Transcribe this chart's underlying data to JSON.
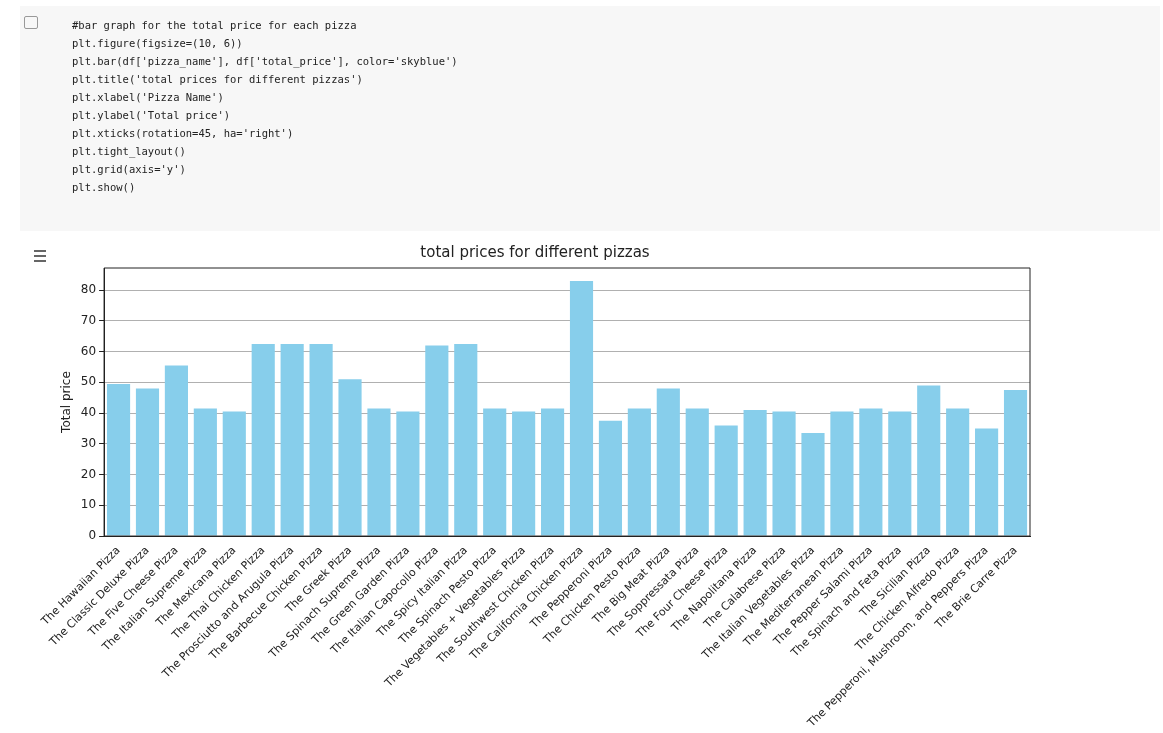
{
  "chart_data": {
    "type": "bar",
    "title": "total prices for different pizzas",
    "ylabel": "Total price",
    "annotations": [
      "#bar graph for the total price for each pizza",
      "plt.figure(figsize=(10, 6))",
      "plt.bar(df['pizza_name'], df['total_price'], color='skyblue')",
      "plt.title('total prices for different pizzas')",
      "plt.xlabel('Pizza Name')",
      "plt.ylabel('Total price')",
      "plt.xticks(rotation=45, ha='right')",
      "plt.tight_layout()",
      "plt.grid(axis='y')",
      "plt.show()"
    ],
    "categories": [
      "The Hawaiian Pizza",
      "The Classic Deluxe Pizza",
      "The Five Cheese Pizza",
      "The Italian Supreme Pizza",
      "The Mexicana Pizza",
      "The Thai Chicken Pizza",
      "The Prosciutto and Arugula Pizza",
      "The Barbecue Chicken Pizza",
      "The Greek Pizza",
      "The Spinach Supreme Pizza",
      "The Green Garden Pizza",
      "The Italian Capocollo Pizza",
      "The Spicy Italian Pizza",
      "The Spinach Pesto Pizza",
      "The Vegetables + Vegetables Pizza",
      "The Southwest Chicken Pizza",
      "The California Chicken Pizza",
      "The Pepperoni Pizza",
      "The Chicken Pesto Pizza",
      "The Big Meat Pizza",
      "The Soppressata Pizza",
      "The Four Cheese Pizza",
      "The Napolitana Pizza",
      "The Calabrese Pizza",
      "The Italian Vegetables Pizza",
      "The Mediterranean Pizza",
      "The Pepper Salami Pizza",
      "The Spinach and Feta Pizza",
      "The Sicilian Pizza",
      "The Chicken Alfredo Pizza",
      "The Pepperoni, Mushroom, and Peppers Pizza",
      "The Brie Carre Pizza"
    ],
    "values": [
      49.5,
      48,
      55.5,
      41.5,
      40.5,
      62.5,
      62.5,
      62.5,
      51,
      41.5,
      40.5,
      62,
      62.5,
      41.5,
      40.5,
      41.5,
      83,
      37.5,
      41.5,
      48,
      41.5,
      36,
      41,
      40.5,
      33.5,
      40.5,
      41.5,
      40.5,
      49,
      41.5,
      35,
      47.5
    ],
    "color": "#87ceeb",
    "ylim": [
      0,
      87.2
    ],
    "yticks": [
      0,
      10,
      20,
      30,
      40,
      50,
      60,
      70,
      80
    ],
    "grid": "y"
  }
}
